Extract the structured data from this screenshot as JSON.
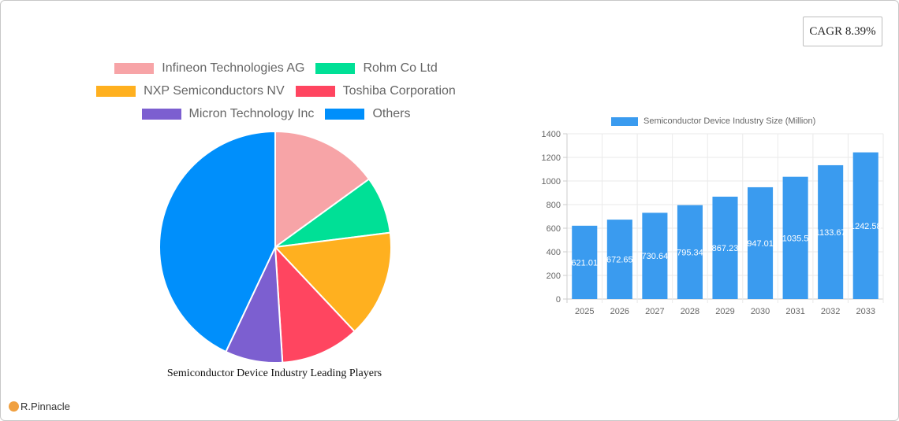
{
  "cagr": {
    "label": "CAGR 8.39%"
  },
  "pie": {
    "title": "Semiconductor Device Industry Leading Players",
    "legend_rows": [
      [
        0,
        1
      ],
      [
        2,
        3
      ],
      [
        4,
        5
      ]
    ]
  },
  "bar": {
    "legend_label": "Semiconductor Device Industry Size (Million)",
    "color": "#3a9bef"
  },
  "logo": {
    "text": "R.Pinnacle",
    "icon": "pinnacle-logo-icon"
  },
  "chart_data": [
    {
      "type": "pie",
      "title": "Semiconductor Device Industry Leading Players",
      "legend_position": "top",
      "labels": [
        "Infineon Technologies AG",
        "Rohm Co  Ltd",
        "NXP Semiconductors NV",
        "Toshiba Corporation",
        "Micron Technology Inc",
        "Others"
      ],
      "values": [
        15,
        8,
        15,
        11,
        8,
        43
      ],
      "colors": [
        "#f7a4a7",
        "#00e096",
        "#ffb01f",
        "#ff4560",
        "#7c5fd0",
        "#008ffb"
      ]
    },
    {
      "type": "bar",
      "title": "",
      "legend": [
        "Semiconductor Device Industry Size (Million)"
      ],
      "legend_position": "top",
      "categories": [
        "2025",
        "2026",
        "2027",
        "2028",
        "2029",
        "2030",
        "2031",
        "2032",
        "2033"
      ],
      "series": [
        {
          "name": "Semiconductor Device Industry Size (Million)",
          "values": [
            621.01,
            672.65,
            730.64,
            795.34,
            867.23,
            947.01,
            1035.5,
            1133.67,
            1242.58
          ]
        }
      ],
      "data_labels": [
        "621.01",
        "672.65",
        "730.64",
        "795.34",
        "867.23",
        "947.01",
        "1035.5",
        "1133.67",
        "1242.58"
      ],
      "yticks": [
        0,
        200,
        400,
        600,
        800,
        1000,
        1200,
        1400
      ],
      "ylim": [
        0,
        1400
      ],
      "grid": true,
      "xlabel": "",
      "ylabel": ""
    }
  ]
}
